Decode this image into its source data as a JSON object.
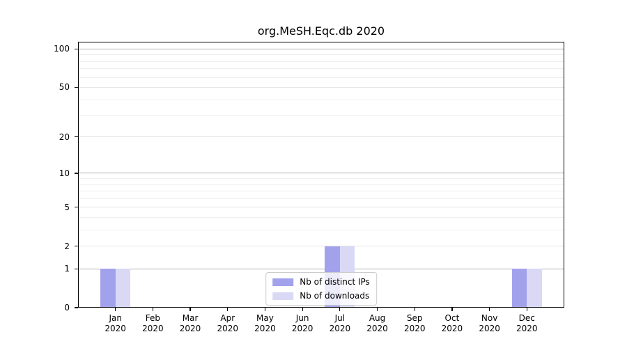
{
  "title": "org.MeSH.Eqc.db 2020",
  "chart_data": {
    "type": "bar",
    "title": "org.MeSH.Eqc.db 2020",
    "categories": [
      "Jan",
      "Feb",
      "Mar",
      "Apr",
      "May",
      "Jun",
      "Jul",
      "Aug",
      "Sep",
      "Oct",
      "Nov",
      "Dec"
    ],
    "category_year": "2020",
    "series": [
      {
        "name": "Nb of distinct IPs",
        "color": "#a2a2ec",
        "values": [
          1,
          0,
          0,
          0,
          0,
          0,
          2,
          0,
          0,
          0,
          0,
          1
        ]
      },
      {
        "name": "Nb of downloads",
        "color": "#d9d9f6",
        "values": [
          1,
          0,
          0,
          0,
          0,
          0,
          2,
          0,
          0,
          0,
          0,
          1
        ]
      }
    ],
    "xlabel": "",
    "ylabel": "",
    "y_scale": "log1p",
    "ylim": [
      0,
      114
    ],
    "y_ticks_labeled": [
      0,
      1,
      2,
      5,
      10,
      20,
      50,
      100
    ],
    "y_gridlines_major": [
      1,
      10,
      100
    ],
    "y_gridlines_mid": [
      2,
      5,
      20,
      50
    ],
    "y_gridlines_minor": [
      3,
      4,
      6,
      7,
      8,
      9,
      30,
      40,
      60,
      70,
      80,
      90
    ],
    "grid": "horizontal",
    "legend_position": "lower center"
  },
  "colors": {
    "grid_major": "#b0b0b0",
    "grid_mid": "#e4e4e4",
    "grid_minor": "#efefef",
    "axis": "#000000",
    "text": "#000000",
    "legend_border": "#cccccc"
  }
}
